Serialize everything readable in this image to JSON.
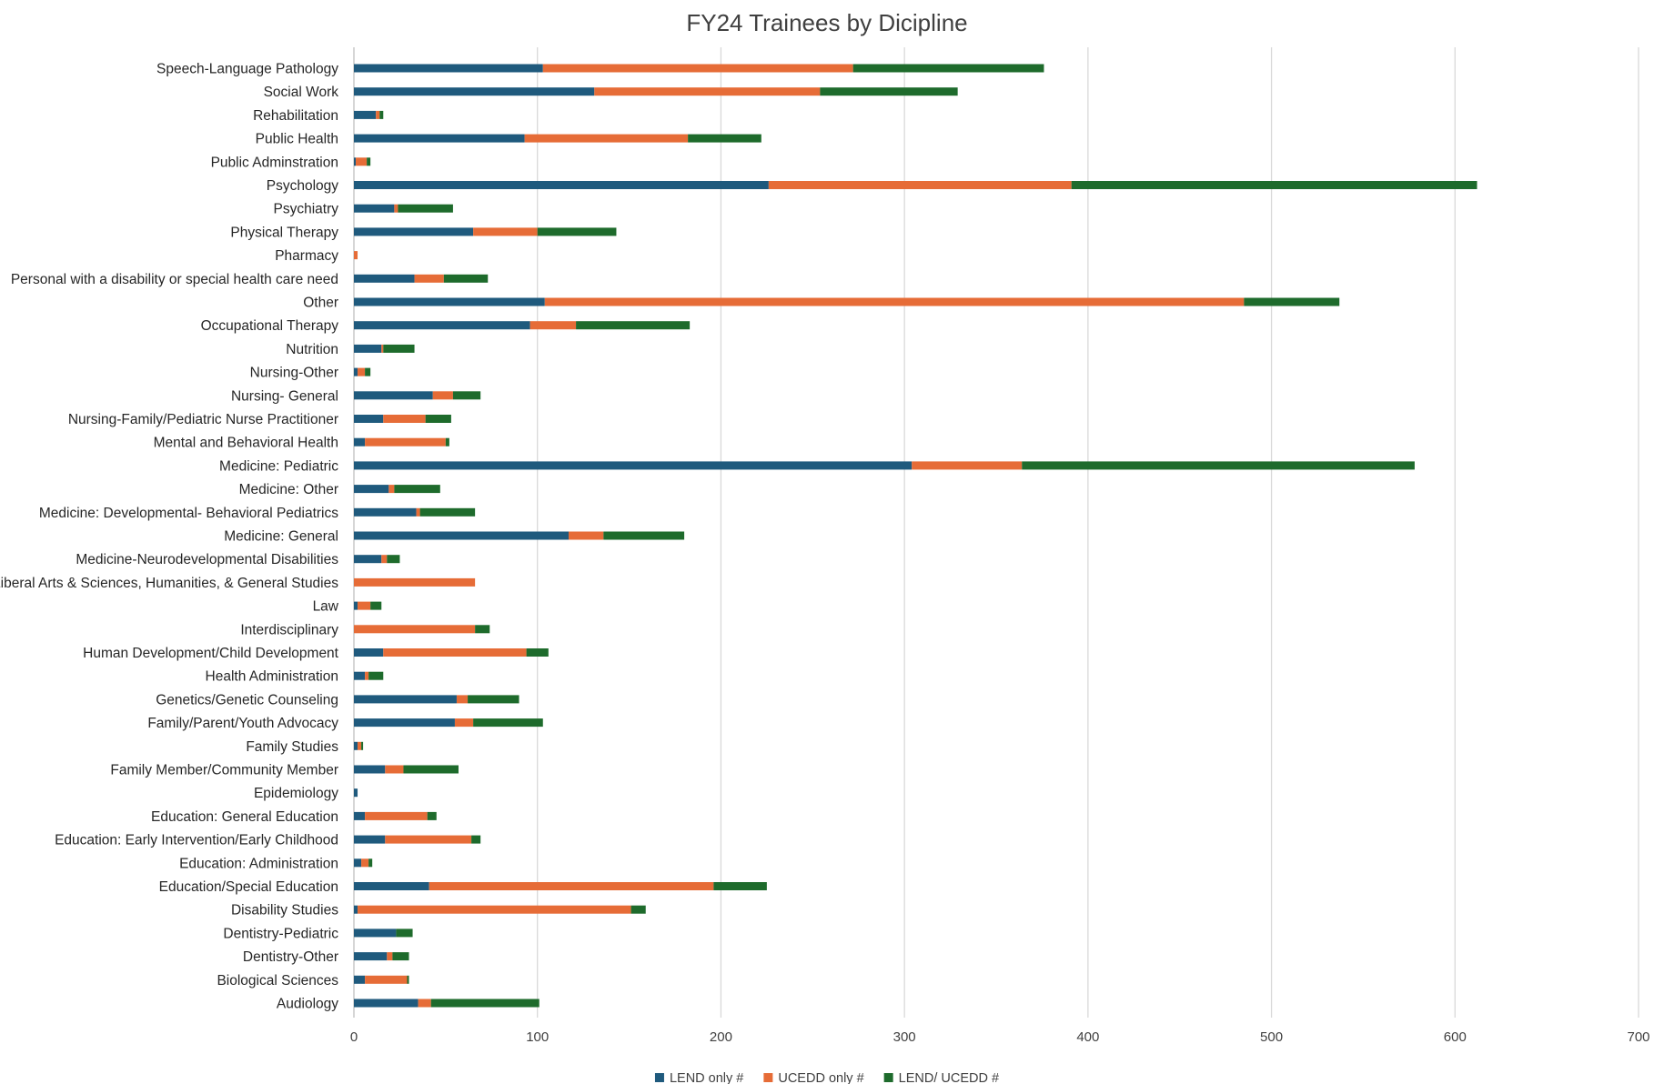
{
  "chart_data": {
    "type": "bar",
    "orientation": "horizontal",
    "stacked": true,
    "title": "FY24 Trainees by Dicipline",
    "xlabel": "",
    "ylabel": "",
    "xlim": [
      0,
      700
    ],
    "xticks": [
      0,
      100,
      200,
      300,
      400,
      500,
      600,
      700
    ],
    "grid": "vertical",
    "legend": "bottom",
    "categories": [
      "Speech-Language Pathology",
      "Social Work",
      "Rehabilitation",
      "Public Health",
      "Public Adminstration",
      "Psychology",
      "Psychiatry",
      "Physical Therapy",
      "Pharmacy",
      "Personal with a disability or special health care need",
      "Other",
      "Occupational Therapy",
      "Nutrition",
      "Nursing-Other",
      "Nursing- General",
      "Nursing-Family/Pediatric Nurse Practitioner",
      "Mental and Behavioral Health",
      "Medicine: Pediatric",
      "Medicine:  Other",
      "Medicine:  Developmental- Behavioral Pediatrics",
      "Medicine: General",
      "Medicine-Neurodevelopmental Disabilities",
      "Liberal Arts & Sciences, Humanities, & General Studies",
      "Law",
      "Interdisciplinary",
      "Human Development/Child Development",
      "Health Administration",
      "Genetics/Genetic Counseling",
      "Family/Parent/Youth Advocacy",
      "Family Studies",
      "Family Member/Community Member",
      "Epidemiology",
      "Education: General Education",
      "Education: Early Intervention/Early Childhood",
      "Education: Administration",
      "Education/Special Education",
      "Disability Studies",
      "Dentistry-Pediatric",
      "Dentistry-Other",
      "Biological Sciences",
      "Audiology"
    ],
    "series": [
      {
        "name": "LEND only #",
        "color": "#1f5a7d",
        "values": [
          103,
          131,
          12,
          93,
          1,
          226,
          22,
          65,
          0,
          33,
          104,
          96,
          15,
          2,
          43,
          16,
          6,
          304,
          19,
          34,
          117,
          15,
          0,
          2,
          0,
          16,
          6,
          56,
          55,
          2,
          17,
          2,
          6,
          17,
          4,
          41,
          2,
          23,
          18,
          6,
          35
        ]
      },
      {
        "name": "UCEDD only #",
        "color": "#e66c37",
        "values": [
          169,
          123,
          2,
          89,
          6,
          165,
          2,
          35,
          2,
          16,
          381,
          25,
          1,
          4,
          11,
          23,
          44,
          60,
          3,
          2,
          19,
          3,
          66,
          7,
          66,
          78,
          2,
          6,
          10,
          2,
          10,
          0,
          34,
          47,
          4,
          155,
          149,
          0,
          3,
          23,
          7
        ]
      },
      {
        "name": "LEND/ UCEDD #",
        "color": "#1e6b2c",
        "values": [
          104,
          75,
          2,
          40,
          2,
          221,
          30,
          43,
          0,
          24,
          52,
          62,
          17,
          3,
          15,
          14,
          2,
          214,
          25,
          30,
          44,
          7,
          0,
          6,
          8,
          12,
          8,
          28,
          38,
          1,
          30,
          0,
          5,
          5,
          2,
          29,
          8,
          9,
          9,
          1,
          59
        ]
      }
    ]
  }
}
